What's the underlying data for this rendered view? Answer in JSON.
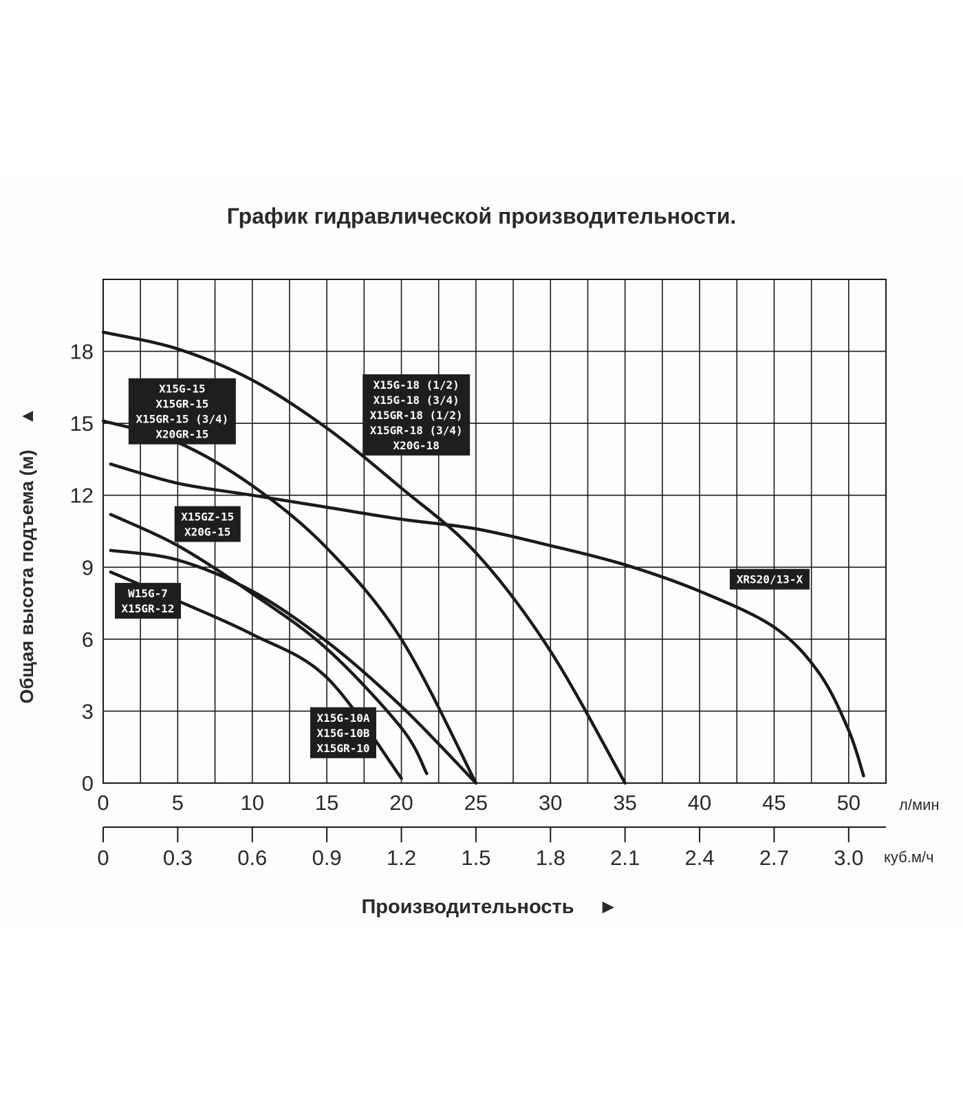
{
  "title": "График гидравлической производительности.",
  "chart_data": {
    "type": "line",
    "title": "График гидравлической производительности.",
    "ylabel": "Общая высота подъема (м)",
    "ylabel_arrow": "▲",
    "xlabel": "Производительность",
    "xlabel_arrow": "►",
    "x_unit": "л/мин",
    "x2_unit": "куб.м/ч",
    "xlim": [
      0,
      52.5
    ],
    "ylim": [
      0,
      21
    ],
    "x_ticks": [
      0,
      5,
      10,
      15,
      20,
      25,
      30,
      35,
      40,
      45,
      50
    ],
    "x_tick_labels": [
      "0",
      "5",
      "10",
      "15",
      "20",
      "25",
      "30",
      "35",
      "40",
      "45",
      "50"
    ],
    "x2_ticks": [
      0,
      5,
      10,
      15,
      20,
      25,
      30,
      35,
      40,
      45,
      50
    ],
    "x2_tick_labels": [
      "0",
      "0.3",
      "0.6",
      "0.9",
      "1.2",
      "1.5",
      "1.8",
      "2.1",
      "2.4",
      "2.7",
      "3.0"
    ],
    "y_ticks": [
      0,
      3,
      6,
      9,
      12,
      15,
      18
    ],
    "y_tick_labels": [
      "0",
      "3",
      "6",
      "9",
      "12",
      "15",
      "18"
    ],
    "grid": true,
    "series": [
      {
        "name": "X15G-18 (1/2), X15G-18 (3/4), X15GR-18 (1/2), X15GR-18 (3/4), X20G-18",
        "x": [
          0,
          5,
          10,
          15,
          20,
          25,
          30,
          35
        ],
        "y": [
          18.8,
          18.1,
          16.8,
          14.8,
          12.3,
          9.6,
          5.5,
          0
        ]
      },
      {
        "name": "X15G-15, X15GR-15, X15GR-15 (3/4), X20GR-15",
        "x": [
          0,
          5,
          10,
          15,
          20,
          25
        ],
        "y": [
          15.1,
          14.2,
          12.4,
          9.8,
          6.0,
          0
        ]
      },
      {
        "name": "XRS20/13-X",
        "x": [
          0.5,
          5,
          10,
          15,
          20,
          25,
          30,
          35,
          40,
          45,
          48,
          50,
          51
        ],
        "y": [
          13.3,
          12.5,
          12.0,
          11.5,
          11.0,
          10.6,
          9.9,
          9.1,
          8.0,
          6.5,
          4.6,
          2.2,
          0.3
        ]
      },
      {
        "name": "X15GZ-15, X20G-15",
        "x": [
          0.5,
          5,
          10,
          15,
          20,
          21.7
        ],
        "y": [
          11.2,
          9.9,
          7.9,
          5.6,
          2.3,
          0.4
        ]
      },
      {
        "name": "X15G-10A, X15G-10B, X15GR-10",
        "x": [
          0.5,
          5,
          10,
          15,
          20,
          25
        ],
        "y": [
          9.7,
          9.3,
          8.0,
          5.9,
          3.2,
          0
        ]
      },
      {
        "name": "W15G-7, X15GR-12",
        "x": [
          0.5,
          5,
          10,
          15,
          20
        ],
        "y": [
          8.8,
          7.6,
          6.2,
          4.4,
          0.2
        ]
      }
    ],
    "annotations": [
      {
        "lines": [
          "X15G-18 (1/2)",
          "X15G-18 (3/4)",
          "X15GR-18 (1/2)",
          "X15GR-18 (3/4)",
          "X20G-18"
        ]
      },
      {
        "lines": [
          "X15G-15",
          "X15GR-15",
          "X15GR-15 (3/4)",
          "X20GR-15"
        ]
      },
      {
        "lines": [
          "X15GZ-15",
          "X20G-15"
        ]
      },
      {
        "lines": [
          "XRS20/13-X"
        ]
      },
      {
        "lines": [
          "W15G-7",
          "X15GR-12"
        ]
      },
      {
        "lines": [
          "X15G-10A",
          "X15G-10B",
          "X15GR-10"
        ]
      }
    ],
    "colors": {
      "curve": "#1a1a1a",
      "grid": "#1a1a1a",
      "label_bg": "#1e1e1e",
      "label_text": "#ffffff"
    }
  }
}
